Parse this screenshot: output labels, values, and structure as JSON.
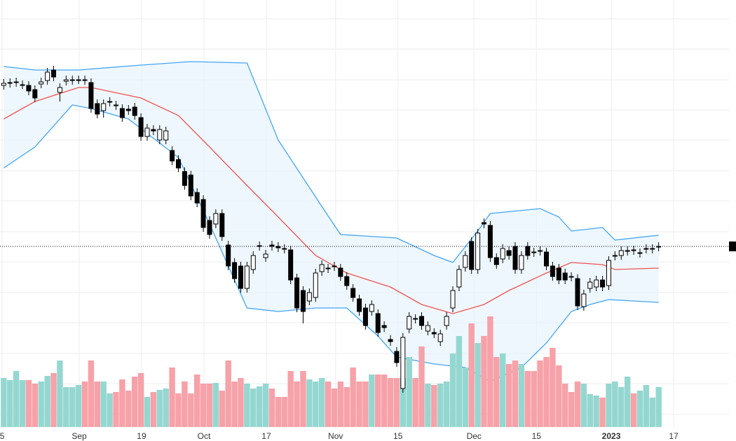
{
  "chart_data": {
    "type": "candlestick",
    "xlim": [
      -0.6,
      117.4
    ],
    "ylim": [
      0,
      600
    ],
    "volume_lim": [
      0,
      610
    ],
    "yticks": [
      8,
      52,
      95,
      139,
      182,
      226,
      269,
      313,
      356,
      400,
      443,
      486,
      530,
      573
    ],
    "grid": true,
    "xticks": [
      {
        "value": -0.26,
        "label": "5"
      },
      {
        "value": 12.1,
        "label": "Sep"
      },
      {
        "value": 22.1,
        "label": "19"
      },
      {
        "value": 32.1,
        "label": "Oct"
      },
      {
        "value": 42.1,
        "label": "17"
      },
      {
        "value": 53.2,
        "label": "Nov"
      },
      {
        "value": 63.2,
        "label": "15"
      },
      {
        "value": 75.4,
        "label": "Dec"
      },
      {
        "value": 85.4,
        "label": "15"
      },
      {
        "value": 97.4,
        "label": "2023",
        "bold": true
      },
      {
        "value": 107.4,
        "label": "17"
      }
    ],
    "up_color": "#ffffff",
    "down_color": "#000000",
    "volume_up_color": "#94d7d0",
    "volume_down_color": "#f7a1a8",
    "open": [
      478,
      481,
      482,
      479,
      478,
      472,
      480,
      485,
      500,
      468,
      484,
      485,
      486,
      486,
      482,
      452,
      442,
      454,
      450,
      445,
      444,
      447,
      432,
      405,
      415,
      400,
      400,
      385,
      372,
      355,
      350,
      325,
      315,
      285,
      280,
      295,
      250,
      225,
      220,
      188,
      215,
      248,
      232,
      250,
      248,
      245,
      243,
      203,
      185,
      170,
      175,
      212,
      217,
      220,
      217,
      205,
      188,
      173,
      160,
      155,
      152,
      135,
      115,
      98,
      45,
      130,
      145,
      148,
      127,
      125,
      112,
      135,
      160,
      190,
      218,
      255,
      215,
      282,
      278,
      232,
      230,
      242,
      248,
      215,
      248,
      240,
      242,
      240,
      220,
      217,
      210,
      205,
      202,
      162,
      188,
      190,
      200,
      192,
      234,
      235,
      241,
      243,
      238,
      244,
      244,
      247
    ],
    "high": [
      487,
      488,
      489,
      485,
      484,
      478,
      489,
      503,
      506,
      481,
      492,
      492,
      492,
      492,
      488,
      458,
      458,
      461,
      456,
      451,
      450,
      453,
      438,
      423,
      421,
      421,
      419,
      391,
      378,
      361,
      356,
      331,
      321,
      291,
      301,
      301,
      256,
      231,
      226,
      226,
      241,
      255,
      243,
      256,
      254,
      251,
      249,
      209,
      191,
      188,
      216,
      228,
      223,
      226,
      223,
      211,
      194,
      179,
      166,
      171,
      158,
      141,
      121,
      104,
      124,
      154,
      151,
      154,
      141,
      131,
      129,
      154,
      191,
      221,
      241,
      261,
      273,
      288,
      284,
      238,
      251,
      248,
      254,
      241,
      254,
      246,
      248,
      246,
      226,
      223,
      216,
      211,
      208,
      186,
      203,
      206,
      206,
      234,
      241,
      248,
      248,
      249,
      245,
      251,
      251,
      254
    ],
    "low": [
      472,
      475,
      476,
      473,
      464,
      454,
      474,
      479,
      484,
      455,
      478,
      479,
      480,
      479,
      439,
      431,
      432,
      448,
      443,
      426,
      436,
      429,
      399,
      399,
      407,
      394,
      394,
      364,
      354,
      329,
      314,
      304,
      269,
      259,
      274,
      256,
      214,
      196,
      182,
      182,
      209,
      242,
      226,
      242,
      240,
      238,
      194,
      154,
      138,
      164,
      169,
      206,
      210,
      213,
      199,
      186,
      169,
      149,
      129,
      149,
      119,
      126,
      106,
      76,
      39,
      124,
      138,
      129,
      121,
      117,
      106,
      129,
      154,
      184,
      212,
      209,
      209,
      274,
      226,
      216,
      224,
      229,
      209,
      209,
      229,
      233,
      235,
      214,
      199,
      194,
      194,
      198,
      157,
      156,
      182,
      184,
      184,
      186,
      228,
      229,
      235,
      236,
      232,
      238,
      238,
      241
    ],
    "close": [
      481,
      482,
      483,
      479,
      470,
      460,
      483,
      497,
      490,
      475,
      486,
      486,
      486,
      485,
      445,
      437,
      452,
      455,
      449,
      432,
      442,
      435,
      405,
      417,
      413,
      415,
      413,
      370,
      360,
      335,
      320,
      310,
      275,
      265,
      295,
      262,
      220,
      202,
      188,
      220,
      235,
      249,
      237,
      248,
      246,
      244,
      200,
      160,
      155,
      182,
      210,
      222,
      216,
      219,
      205,
      192,
      175,
      155,
      135,
      165,
      125,
      132,
      112,
      82,
      118,
      148,
      144,
      135,
      135,
      123,
      123,
      148,
      185,
      215,
      235,
      215,
      267,
      280,
      232,
      222,
      245,
      235,
      215,
      235,
      235,
      239,
      241,
      220,
      205,
      200,
      200,
      204,
      163,
      180,
      197,
      200,
      190,
      228,
      235,
      242,
      242,
      242,
      239,
      245,
      245,
      248
    ],
    "volume": [
      70,
      67,
      80,
      67,
      67,
      62,
      65,
      73,
      77,
      95,
      57,
      57,
      60,
      65,
      95,
      65,
      65,
      48,
      50,
      68,
      52,
      72,
      77,
      43,
      50,
      53,
      55,
      85,
      48,
      65,
      48,
      75,
      62,
      62,
      63,
      52,
      95,
      65,
      70,
      62,
      55,
      58,
      62,
      55,
      43,
      43,
      80,
      65,
      80,
      68,
      65,
      70,
      65,
      55,
      65,
      57,
      85,
      65,
      65,
      75,
      75,
      75,
      70,
      70,
      70,
      100,
      70,
      115,
      62,
      60,
      62,
      65,
      105,
      130,
      85,
      148,
      120,
      130,
      158,
      100,
      105,
      90,
      95,
      90,
      80,
      80,
      95,
      100,
      113,
      88,
      62,
      50,
      65,
      62,
      47,
      45,
      42,
      62,
      65,
      57,
      72,
      48,
      52,
      60,
      42,
      57
    ],
    "bands": {
      "fill": "#e3f2fd",
      "upper": {
        "color": "#42a5f5",
        "x": [
          0,
          5,
          12,
          22,
          30,
          39,
          44,
          51,
          54,
          63,
          69,
          72,
          76,
          78,
          86,
          89,
          91,
          96,
          98,
          105
        ],
        "values": [
          505,
          500,
          500,
          507,
          512,
          510,
          400,
          305,
          265,
          260,
          235,
          225,
          270,
          295,
          302,
          290,
          270,
          275,
          257,
          264
        ]
      },
      "middle": {
        "color": "#ef5350",
        "x": [
          0,
          5,
          12,
          14,
          22,
          28,
          33,
          39,
          44,
          50,
          55,
          62,
          67,
          72,
          77,
          81,
          87,
          91,
          96,
          98,
          105
        ],
        "values": [
          430,
          455,
          475,
          475,
          460,
          435,
          390,
          335,
          290,
          235,
          210,
          190,
          165,
          152,
          165,
          185,
          210,
          225,
          222,
          215,
          217
        ]
      },
      "lower": {
        "color": "#42a5f5",
        "x": [
          0,
          5,
          11,
          14,
          20,
          28,
          33,
          37,
          39,
          44,
          50,
          55,
          60,
          63,
          69,
          74,
          78,
          83,
          87,
          91,
          94,
          97,
          105
        ],
        "values": [
          360,
          390,
          450,
          445,
          430,
          375,
          280,
          200,
          160,
          155,
          160,
          160,
          120,
          90,
          80,
          75,
          55,
          75,
          110,
          155,
          165,
          172,
          168
        ]
      }
    }
  }
}
